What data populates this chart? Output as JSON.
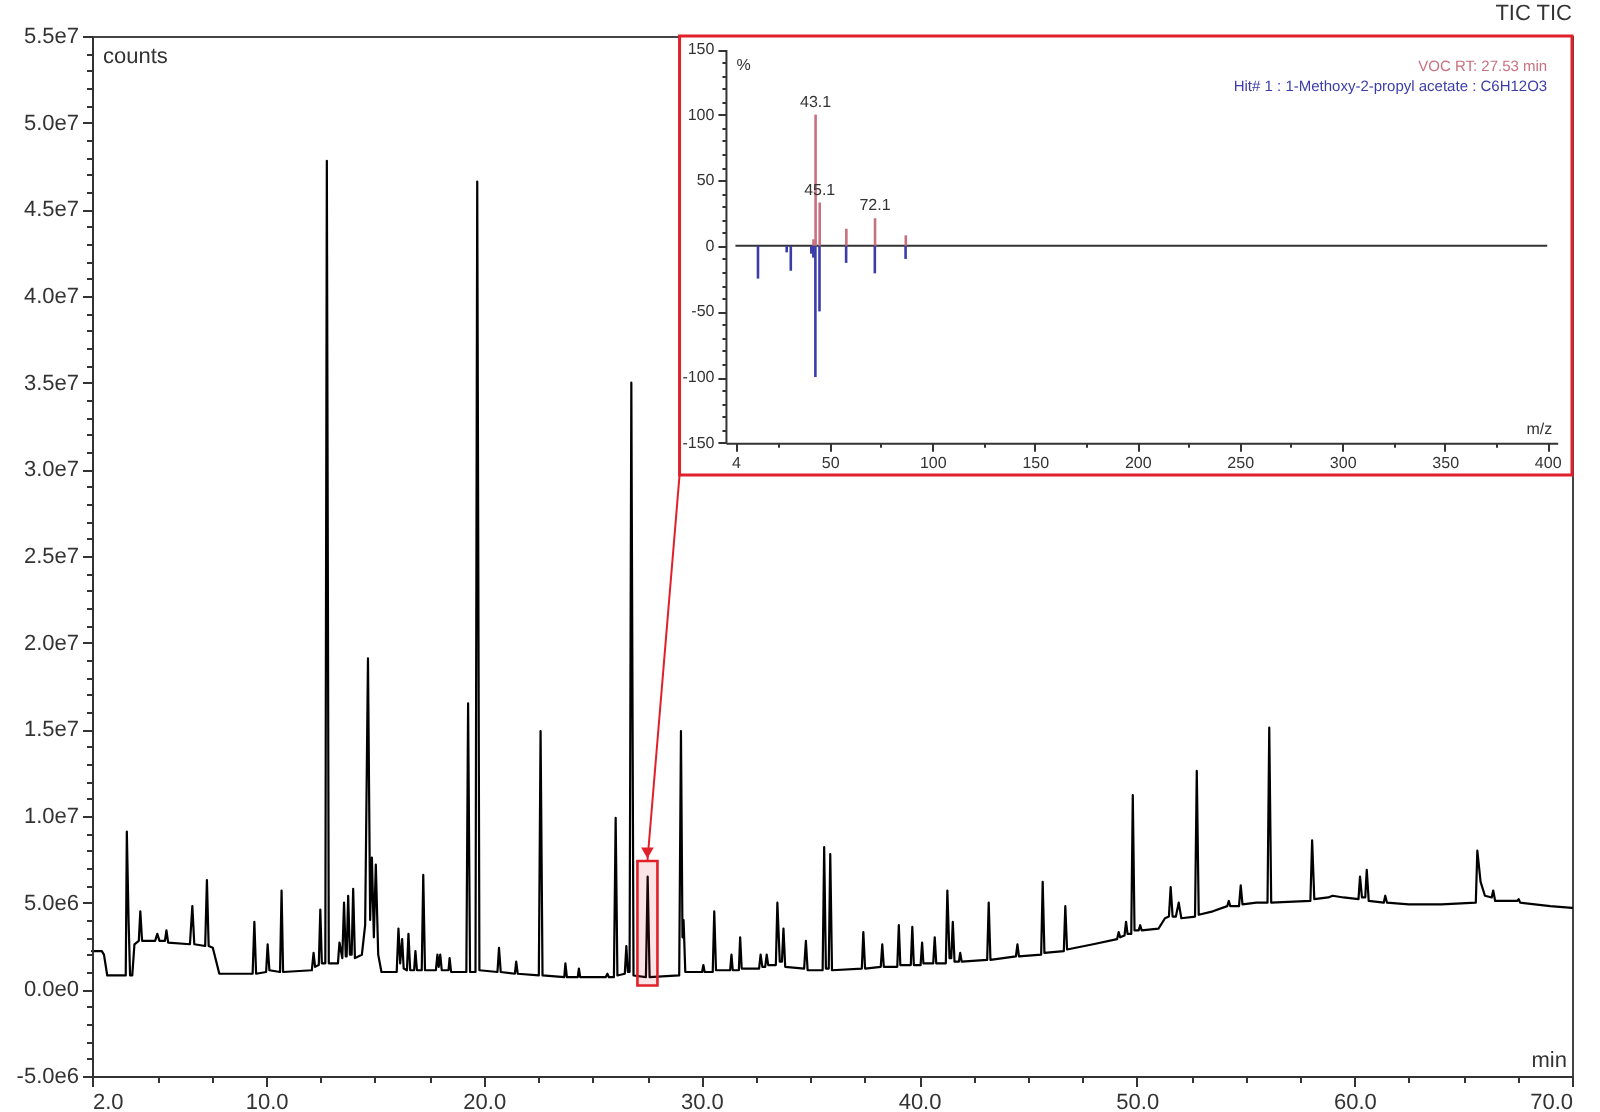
{
  "chart_data": [
    {
      "type": "line",
      "title": "TIC TIC",
      "xlabel": "min",
      "ylabel": "counts",
      "x": [
        2.0,
        2.45,
        2.55,
        2.7,
        3.55,
        3.6,
        3.68,
        3.75,
        3.85,
        3.95,
        4.15,
        4.22,
        4.3,
        4.9,
        5.0,
        5.1,
        5.35,
        5.42,
        5.5,
        6.5,
        6.61,
        6.7,
        7.2,
        7.28,
        7.36,
        7.55,
        7.85,
        9.38,
        9.46,
        9.54,
        10.0,
        10.07,
        10.15,
        10.64,
        10.71,
        10.78,
        12.1,
        12.18,
        12.25,
        12.42,
        12.49,
        12.56,
        12.72,
        12.79,
        12.88,
        13.3,
        13.37,
        13.5,
        13.58,
        13.66,
        13.7,
        13.77,
        13.85,
        13.93,
        14.0,
        14.08,
        14.4,
        14.55,
        14.68,
        14.78,
        14.86,
        14.95,
        15.04,
        15.15,
        15.3,
        16.0,
        16.08,
        16.16,
        16.25,
        16.32,
        16.47,
        16.54,
        16.62,
        16.8,
        16.86,
        16.93,
        17.15,
        17.22,
        17.3,
        17.8,
        17.87,
        17.93,
        18.0,
        18.07,
        18.38,
        18.43,
        18.5,
        19.2,
        19.28,
        19.37,
        19.62,
        19.7,
        19.8,
        20.63,
        20.7,
        20.78,
        21.43,
        21.49,
        21.56,
        22.53,
        22.61,
        22.7,
        23.7,
        23.75,
        23.82,
        24.32,
        24.37,
        24.43,
        25.6,
        25.68,
        25.75,
        25.98,
        26.06,
        26.14,
        26.48,
        26.55,
        26.62,
        26.7,
        26.78,
        26.88,
        27.45,
        27.53,
        27.62,
        28.98,
        29.06,
        29.13,
        29.18,
        29.26,
        30.03,
        30.09,
        30.15,
        30.52,
        30.59,
        30.67,
        31.32,
        31.38,
        31.44,
        31.72,
        31.78,
        31.85,
        32.65,
        32.72,
        32.8,
        32.93,
        33.0,
        33.07,
        33.42,
        33.49,
        33.6,
        33.7,
        33.77,
        33.85,
        34.72,
        34.8,
        34.88,
        35.57,
        35.64,
        35.72,
        35.85,
        35.92,
        36.0,
        37.37,
        37.44,
        37.52,
        38.24,
        38.31,
        38.38,
        39.0,
        39.07,
        39.14,
        39.62,
        39.69,
        39.76,
        40.07,
        40.14,
        40.2,
        40.65,
        40.72,
        40.79,
        41.23,
        41.3,
        41.4,
        41.48,
        41.55,
        41.63,
        41.83,
        41.89,
        41.96,
        43.13,
        43.2,
        43.28,
        44.45,
        44.52,
        44.59,
        45.61,
        45.68,
        45.76,
        46.65,
        46.72,
        46.8,
        48.0,
        49.1,
        49.17,
        49.24,
        49.44,
        49.51,
        49.58,
        49.75,
        49.82,
        49.9,
        50.09,
        50.16,
        50.23,
        51.0,
        51.3,
        51.48,
        51.56,
        51.65,
        51.8,
        51.93,
        52.05,
        52.68,
        52.76,
        52.85,
        53.5,
        54.16,
        54.23,
        54.3,
        54.7,
        54.78,
        54.86,
        55.5,
        56.01,
        56.09,
        56.18,
        57.98,
        58.06,
        58.16,
        58.8,
        59.0,
        59.5,
        60.19,
        60.26,
        60.35,
        60.5,
        60.57,
        60.66,
        61.35,
        61.42,
        61.5,
        62.5,
        64.0,
        65.58,
        65.65,
        65.8,
        66.0,
        66.31,
        66.38,
        66.47,
        67.48,
        67.55,
        67.62,
        69.0,
        70.0
      ],
      "series": [
        {
          "color": "#000000",
          "values": [
            2200000.0,
            2200000.0,
            2000000.0,
            800000.0,
            800000.0,
            9100000.0,
            4000000.0,
            800000.0,
            800000.0,
            2600000.0,
            2800000.0,
            4500000.0,
            2800000.0,
            2800000.0,
            3200000.0,
            2800000.0,
            2800000.0,
            3400000.0,
            2700000.0,
            2600000.0,
            4800000.0,
            2600000.0,
            2500000.0,
            6300000.0,
            2500000.0,
            2400000.0,
            900000.0,
            900000.0,
            3900000.0,
            900000.0,
            1000000.0,
            2600000.0,
            1100000.0,
            1000000.0,
            5700000.0,
            1000000.0,
            1100000.0,
            2100000.0,
            1300000.0,
            1400000.0,
            4600000.0,
            1500000.0,
            1500000.0,
            47800000.0,
            1500000.0,
            1500000.0,
            2700000.0,
            1800000.0,
            5000000.0,
            1900000.0,
            1900000.0,
            5400000.0,
            2000000.0,
            2000000.0,
            5800000.0,
            1800000.0,
            2000000.0,
            3700000.0,
            19100000.0,
            4000000.0,
            7600000.0,
            3000000.0,
            7200000.0,
            2000000.0,
            1000000.0,
            1000000.0,
            3500000.0,
            1500000.0,
            2900000.0,
            1200000.0,
            1100000.0,
            3200000.0,
            1100000.0,
            1100000.0,
            2200000.0,
            1100000.0,
            1100000.0,
            6600000.0,
            1100000.0,
            1100000.0,
            2000000.0,
            1300000.0,
            2000000.0,
            1100000.0,
            1100000.0,
            1800000.0,
            1000000.0,
            1000000.0,
            16500000.0,
            1000000.0,
            1000000.0,
            46600000.0,
            1100000.0,
            1000000.0,
            2400000.0,
            1000000.0,
            900000.0,
            1600000.0,
            900000.0,
            800000.0,
            14900000.0,
            800000.0,
            700000.0,
            1500000.0,
            700000.0,
            700000.0,
            1200000.0,
            700000.0,
            700000.0,
            900000.0,
            700000.0,
            700000.0,
            9900000.0,
            800000.0,
            900000.0,
            2500000.0,
            1000000.0,
            1000000.0,
            35000000.0,
            800000.0,
            700000.0,
            6500000.0,
            700000.0,
            800000.0,
            14900000.0,
            3000000.0,
            4000000.0,
            1000000.0,
            1000000.0,
            1400000.0,
            1000000.0,
            1000000.0,
            4500000.0,
            1100000.0,
            1100000.0,
            2000000.0,
            1100000.0,
            1100000.0,
            3000000.0,
            1200000.0,
            1200000.0,
            2000000.0,
            1300000.0,
            1300000.0,
            2000000.0,
            1400000.0,
            1400000.0,
            5000000.0,
            1600000.0,
            1600000.0,
            3500000.0,
            1300000.0,
            1200000.0,
            2800000.0,
            1100000.0,
            1100000.0,
            8200000.0,
            1200000.0,
            1200000.0,
            7800000.0,
            1100000.0,
            1200000.0,
            3300000.0,
            1200000.0,
            1300000.0,
            2600000.0,
            1300000.0,
            1300000.0,
            3700000.0,
            1400000.0,
            1400000.0,
            3600000.0,
            1400000.0,
            1400000.0,
            2700000.0,
            1500000.0,
            1500000.0,
            3000000.0,
            1500000.0,
            1500000.0,
            5700000.0,
            1800000.0,
            1800000.0,
            3900000.0,
            1600000.0,
            1600000.0,
            2100000.0,
            1600000.0,
            1700000.0,
            5000000.0,
            1700000.0,
            1900000.0,
            2600000.0,
            1900000.0,
            2000000.0,
            6200000.0,
            2100000.0,
            2200000.0,
            4800000.0,
            2300000.0,
            2600000.0,
            2900000.0,
            3300000.0,
            3000000.0,
            3100000.0,
            3900000.0,
            3200000.0,
            3200000.0,
            11200000.0,
            3400000.0,
            3400000.0,
            3700000.0,
            3400000.0,
            3500000.0,
            4100000.0,
            4200000.0,
            5900000.0,
            4200000.0,
            4200000.0,
            5000000.0,
            4100000.0,
            4200000.0,
            12600000.0,
            4300000.0,
            4500000.0,
            4800000.0,
            5100000.0,
            4800000.0,
            4800000.0,
            6000000.0,
            4900000.0,
            5000000.0,
            5000000.0,
            15100000.0,
            5000000.0,
            5100000.0,
            8600000.0,
            5200000.0,
            5300000.0,
            5400000.0,
            5300000.0,
            5200000.0,
            6500000.0,
            5300000.0,
            5300000.0,
            6900000.0,
            5100000.0,
            5000000.0,
            5400000.0,
            5000000.0,
            4900000.0,
            4900000.0,
            5000000.0,
            8000000.0,
            6200000.0,
            5400000.0,
            5300000.0,
            5700000.0,
            5100000.0,
            5100000.0,
            5200000.0,
            5000000.0,
            4800000.0,
            4700000.0
          ]
        }
      ],
      "xlim": [
        2,
        70
      ],
      "ylim": [
        -5000000.0,
        55000000.0
      ],
      "xticks": [
        {
          "value": 2,
          "label": "2.0"
        },
        {
          "value": 5,
          "label": null
        },
        {
          "value": 7.5,
          "label": null
        },
        {
          "value": 10,
          "label": "10.0"
        },
        {
          "value": 12.5,
          "label": null
        },
        {
          "value": 15,
          "label": null
        },
        {
          "value": 17.5,
          "label": null
        },
        {
          "value": 20,
          "label": "20.0"
        },
        {
          "value": 22.5,
          "label": null
        },
        {
          "value": 25,
          "label": null
        },
        {
          "value": 27.5,
          "label": null
        },
        {
          "value": 30,
          "label": "30.0"
        },
        {
          "value": 32.5,
          "label": null
        },
        {
          "value": 35,
          "label": null
        },
        {
          "value": 37.5,
          "label": null
        },
        {
          "value": 40,
          "label": "40.0"
        },
        {
          "value": 42.5,
          "label": null
        },
        {
          "value": 45,
          "label": null
        },
        {
          "value": 47.5,
          "label": null
        },
        {
          "value": 50,
          "label": "50.0"
        },
        {
          "value": 52.5,
          "label": null
        },
        {
          "value": 55,
          "label": null
        },
        {
          "value": 57.5,
          "label": null
        },
        {
          "value": 60,
          "label": "60.0"
        },
        {
          "value": 62.5,
          "label": null
        },
        {
          "value": 65,
          "label": null
        },
        {
          "value": 67.5,
          "label": null
        },
        {
          "value": 70,
          "label": "70.0"
        }
      ],
      "yticks": [
        {
          "value": -5000000.0,
          "label": "-5.0e6"
        },
        {
          "value": -4000000.0,
          "label": null
        },
        {
          "value": -3000000.0,
          "label": null
        },
        {
          "value": -2000000.0,
          "label": null
        },
        {
          "value": -1000000.0,
          "label": null
        },
        {
          "value": 0,
          "label": "0.0e0"
        },
        {
          "value": 1000000.0,
          "label": null
        },
        {
          "value": 2000000.0,
          "label": null
        },
        {
          "value": 3000000.0,
          "label": null
        },
        {
          "value": 4000000.0,
          "label": null
        },
        {
          "value": 5000000.0,
          "label": "5.0e6"
        },
        {
          "value": 6000000.0,
          "label": null
        },
        {
          "value": 7000000.0,
          "label": null
        },
        {
          "value": 8000000.0,
          "label": null
        },
        {
          "value": 9000000.0,
          "label": null
        },
        {
          "value": 10000000.0,
          "label": "1.0e7"
        },
        {
          "value": 11000000.0,
          "label": null
        },
        {
          "value": 12000000.0,
          "label": null
        },
        {
          "value": 13000000.0,
          "label": null
        },
        {
          "value": 14000000.0,
          "label": null
        },
        {
          "value": 15000000.0,
          "label": "1.5e7"
        },
        {
          "value": 16000000.0,
          "label": null
        },
        {
          "value": 17000000.0,
          "label": null
        },
        {
          "value": 18000000.0,
          "label": null
        },
        {
          "value": 19000000.0,
          "label": null
        },
        {
          "value": 20000000.0,
          "label": "2.0e7"
        },
        {
          "value": 21000000.0,
          "label": null
        },
        {
          "value": 22000000.0,
          "label": null
        },
        {
          "value": 23000000.0,
          "label": null
        },
        {
          "value": 24000000.0,
          "label": null
        },
        {
          "value": 25000000.0,
          "label": "2.5e7"
        },
        {
          "value": 26000000.0,
          "label": null
        },
        {
          "value": 27000000.0,
          "label": null
        },
        {
          "value": 28000000.0,
          "label": null
        },
        {
          "value": 29000000.0,
          "label": null
        },
        {
          "value": 30000000.0,
          "label": "3.0e7"
        },
        {
          "value": 31000000.0,
          "label": null
        },
        {
          "value": 32000000.0,
          "label": null
        },
        {
          "value": 33000000.0,
          "label": null
        },
        {
          "value": 34000000.0,
          "label": null
        },
        {
          "value": 35000000.0,
          "label": "3.5e7"
        },
        {
          "value": 36000000.0,
          "label": null
        },
        {
          "value": 37000000.0,
          "label": null
        },
        {
          "value": 38000000.0,
          "label": null
        },
        {
          "value": 39000000.0,
          "label": null
        },
        {
          "value": 40000000.0,
          "label": "4.0e7"
        },
        {
          "value": 41000000.0,
          "label": null
        },
        {
          "value": 42000000.0,
          "label": null
        },
        {
          "value": 43000000.0,
          "label": null
        },
        {
          "value": 44000000.0,
          "label": null
        },
        {
          "value": 45000000.0,
          "label": "4.5e7"
        },
        {
          "value": 46000000.0,
          "label": null
        },
        {
          "value": 47000000.0,
          "label": null
        },
        {
          "value": 48000000.0,
          "label": null
        },
        {
          "value": 49000000.0,
          "label": null
        },
        {
          "value": 50000000.0,
          "label": "5.0e7"
        },
        {
          "value": 51000000.0,
          "label": null
        },
        {
          "value": 52000000.0,
          "label": null
        },
        {
          "value": 53000000.0,
          "label": null
        },
        {
          "value": 54000000.0,
          "label": null
        },
        {
          "value": 55000000.0,
          "label": "5.5e7"
        }
      ],
      "bands": [
        {
          "axis": "x",
          "from": 27.06,
          "to": 27.98,
          "color": "#e0202a"
        }
      ]
    },
    {
      "type": "bar",
      "xlabel": "m/z",
      "ylabel": "%",
      "series": [
        {
          "name": "VOC RT: 27.53 min",
          "color": "#c8707f",
          "x": [
            42.1,
            43.1,
            45.1,
            58.1,
            72.1,
            87.1
          ],
          "values": [
            5,
            100,
            33,
            13,
            21,
            8
          ]
        },
        {
          "name": "Hit# 1 : 1-Methoxy-2-propyl acetate : C6H12O3",
          "color": "#3c3ca8",
          "x": [
            15,
            29,
            31,
            41,
            42,
            43,
            45,
            58,
            72,
            87
          ],
          "values": [
            -25,
            -5,
            -19,
            -6,
            -9,
            -100,
            -50,
            -13,
            -21,
            -10
          ]
        }
      ],
      "xlim": [
        4,
        400
      ],
      "ylim": [
        -150,
        150
      ],
      "xticks": [
        4,
        {
          "value": 25,
          "label": null
        },
        50,
        {
          "value": 75,
          "label": null
        },
        100,
        {
          "value": 125,
          "label": null
        },
        150,
        {
          "value": 175,
          "label": null
        },
        200,
        {
          "value": 225,
          "label": null
        },
        250,
        {
          "value": 275,
          "label": null
        },
        300,
        {
          "value": 325,
          "label": null
        },
        350,
        {
          "value": 375,
          "label": null
        },
        400
      ],
      "yticks": [
        -150,
        {
          "value": -140,
          "label": null
        },
        {
          "value": -130,
          "label": null
        },
        {
          "value": -120,
          "label": null
        },
        {
          "value": -110,
          "label": null
        },
        -100,
        {
          "value": -90,
          "label": null
        },
        {
          "value": -80,
          "label": null
        },
        {
          "value": -70,
          "label": null
        },
        {
          "value": -60,
          "label": null
        },
        -50,
        {
          "value": -40,
          "label": null
        },
        {
          "value": -30,
          "label": null
        },
        {
          "value": -20,
          "label": null
        },
        {
          "value": -10,
          "label": null
        },
        0,
        {
          "value": 10,
          "label": null
        },
        {
          "value": 20,
          "label": null
        },
        {
          "value": 30,
          "label": null
        },
        {
          "value": 40,
          "label": null
        },
        50,
        {
          "value": 60,
          "label": null
        },
        {
          "value": 70,
          "label": null
        },
        {
          "value": 80,
          "label": null
        },
        {
          "value": 90,
          "label": null
        },
        100,
        {
          "value": 110,
          "label": null
        },
        {
          "value": 120,
          "label": null
        },
        {
          "value": 130,
          "label": null
        },
        {
          "value": 140,
          "label": null
        },
        150
      ],
      "legend": "top right",
      "ref_lines": [
        {
          "axis": "y",
          "value": 0,
          "color": "#333333"
        }
      ],
      "annotations": [
        {
          "text": "43.1",
          "x": 43.1,
          "y": 100
        },
        {
          "text": "45.1",
          "x": 45.1,
          "y": 33
        },
        {
          "text": "72.1",
          "x": 72.1,
          "y": 21
        }
      ]
    }
  ]
}
